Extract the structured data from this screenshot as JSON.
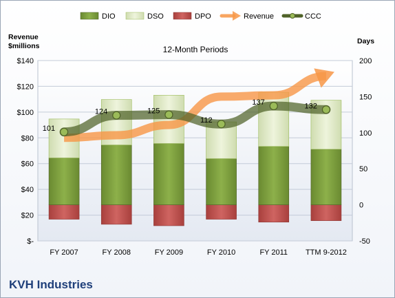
{
  "company": "KVH Industries",
  "chart_data": {
    "type": "bar",
    "subtitle": "12-Month Periods",
    "left_axis_title_line1": "Revenue",
    "left_axis_title_line2": "$millions",
    "right_axis_title": "Days",
    "categories": [
      "FY 2007",
      "FY 2008",
      "FY 2009",
      "FY 2010",
      "FY 2011",
      "TTM 9-2012"
    ],
    "left_axis": {
      "min": 0,
      "max": 140,
      "step": 20,
      "tick_labels": [
        "$-",
        "$20",
        "$40",
        "$60",
        "$80",
        "$100",
        "$120",
        "$140"
      ]
    },
    "right_axis": {
      "min": -50,
      "max": 200,
      "step": 50,
      "tick_labels": [
        "-50",
        "0",
        "50",
        "100",
        "150",
        "200"
      ]
    },
    "grid": true,
    "legend_position": "top",
    "series": [
      {
        "name": "DIO",
        "axis": "right",
        "kind": "stacked-bar",
        "color": "#77933c",
        "values": [
          65,
          83,
          85,
          64,
          81,
          77
        ]
      },
      {
        "name": "DSO",
        "axis": "right",
        "kind": "stacked-bar",
        "color": "#d7e4bd",
        "values": [
          54,
          63,
          67,
          51,
          75,
          68
        ]
      },
      {
        "name": "DPO",
        "axis": "right",
        "kind": "negative-bar",
        "color": "#c0504d",
        "values": [
          -20,
          -27,
          -29,
          -20,
          -24,
          -22
        ]
      },
      {
        "name": "Revenue",
        "axis": "left",
        "kind": "arrow-line",
        "color": "#f79646",
        "values": [
          80,
          82,
          90,
          112,
          113,
          128
        ]
      },
      {
        "name": "CCC",
        "axis": "right",
        "kind": "line-markers",
        "color": "#4f6228",
        "values": [
          101,
          124,
          125,
          112,
          137,
          132
        ],
        "labels": [
          "101",
          "124",
          "125",
          "112",
          "137",
          "132"
        ]
      }
    ]
  }
}
